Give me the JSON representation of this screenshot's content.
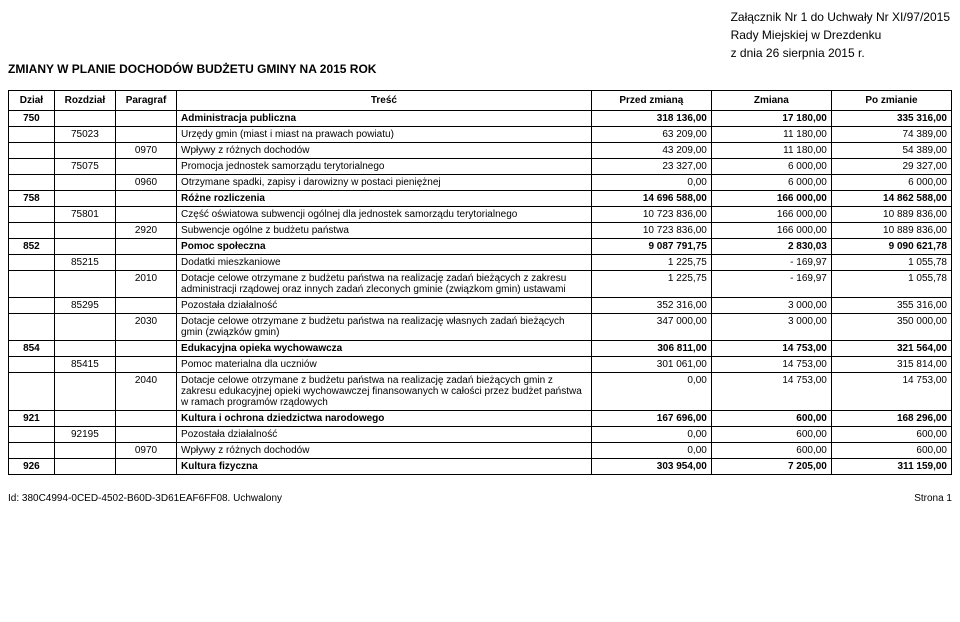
{
  "header": {
    "attachment": "Załącznik Nr 1 do Uchwały Nr XI/97/2015",
    "council": "Rady Miejskiej w Drezdenku",
    "date": "z dnia 26 sierpnia 2015 r."
  },
  "title": "ZMIANY W PLANIE DOCHODÓW BUDŻETU GMINY NA 2015 ROK",
  "columns": {
    "dzial": "Dział",
    "rozdzial": "Rozdział",
    "paragraf": "Paragraf",
    "tresc": "Treść",
    "przed": "Przed zmianą",
    "zmiana": "Zmiana",
    "po": "Po zmianie"
  },
  "rows": [
    {
      "dzial": "750",
      "rozdzial": "",
      "paragraf": "",
      "tresc": "Administracja publiczna",
      "przed": "318 136,00",
      "zmiana": "17 180,00",
      "po": "335 316,00",
      "bold": true
    },
    {
      "dzial": "",
      "rozdzial": "75023",
      "paragraf": "",
      "tresc": "Urzędy gmin (miast i miast na prawach powiatu)",
      "przed": "63 209,00",
      "zmiana": "11 180,00",
      "po": "74 389,00",
      "bold": false
    },
    {
      "dzial": "",
      "rozdzial": "",
      "paragraf": "0970",
      "tresc": "Wpływy z różnych dochodów",
      "przed": "43 209,00",
      "zmiana": "11 180,00",
      "po": "54 389,00",
      "bold": false
    },
    {
      "dzial": "",
      "rozdzial": "75075",
      "paragraf": "",
      "tresc": "Promocja jednostek samorządu terytorialnego",
      "przed": "23 327,00",
      "zmiana": "6 000,00",
      "po": "29 327,00",
      "bold": false
    },
    {
      "dzial": "",
      "rozdzial": "",
      "paragraf": "0960",
      "tresc": "Otrzymane spadki, zapisy i darowizny w postaci pieniężnej",
      "przed": "0,00",
      "zmiana": "6 000,00",
      "po": "6 000,00",
      "bold": false
    },
    {
      "dzial": "758",
      "rozdzial": "",
      "paragraf": "",
      "tresc": "Różne rozliczenia",
      "przed": "14 696 588,00",
      "zmiana": "166 000,00",
      "po": "14 862 588,00",
      "bold": true
    },
    {
      "dzial": "",
      "rozdzial": "75801",
      "paragraf": "",
      "tresc": "Część oświatowa subwencji ogólnej dla jednostek samorządu terytorialnego",
      "przed": "10 723 836,00",
      "zmiana": "166 000,00",
      "po": "10 889 836,00",
      "bold": false
    },
    {
      "dzial": "",
      "rozdzial": "",
      "paragraf": "2920",
      "tresc": "Subwencje ogólne z budżetu państwa",
      "przed": "10 723 836,00",
      "zmiana": "166 000,00",
      "po": "10 889 836,00",
      "bold": false
    },
    {
      "dzial": "852",
      "rozdzial": "",
      "paragraf": "",
      "tresc": "Pomoc społeczna",
      "przed": "9 087 791,75",
      "zmiana": "2 830,03",
      "po": "9 090 621,78",
      "bold": true
    },
    {
      "dzial": "",
      "rozdzial": "85215",
      "paragraf": "",
      "tresc": "Dodatki mieszkaniowe",
      "przed": "1 225,75",
      "zmiana": "- 169,97",
      "po": "1 055,78",
      "bold": false
    },
    {
      "dzial": "",
      "rozdzial": "",
      "paragraf": "2010",
      "tresc": "Dotacje celowe otrzymane z budżetu państwa na realizację zadań bieżących z zakresu administracji rządowej oraz innych zadań zleconych gminie (związkom gmin) ustawami",
      "przed": "1 225,75",
      "zmiana": "- 169,97",
      "po": "1 055,78",
      "bold": false
    },
    {
      "dzial": "",
      "rozdzial": "85295",
      "paragraf": "",
      "tresc": "Pozostała działalność",
      "przed": "352 316,00",
      "zmiana": "3 000,00",
      "po": "355 316,00",
      "bold": false
    },
    {
      "dzial": "",
      "rozdzial": "",
      "paragraf": "2030",
      "tresc": "Dotacje celowe otrzymane z budżetu państwa na realizację własnych zadań bieżących gmin (związków gmin)",
      "przed": "347 000,00",
      "zmiana": "3 000,00",
      "po": "350 000,00",
      "bold": false
    },
    {
      "dzial": "854",
      "rozdzial": "",
      "paragraf": "",
      "tresc": "Edukacyjna opieka wychowawcza",
      "przed": "306 811,00",
      "zmiana": "14 753,00",
      "po": "321 564,00",
      "bold": true
    },
    {
      "dzial": "",
      "rozdzial": "85415",
      "paragraf": "",
      "tresc": "Pomoc materialna dla uczniów",
      "przed": "301 061,00",
      "zmiana": "14 753,00",
      "po": "315 814,00",
      "bold": false
    },
    {
      "dzial": "",
      "rozdzial": "",
      "paragraf": "2040",
      "tresc": "Dotacje celowe otrzymane z budżetu państwa na realizację zadań bieżących gmin z zakresu edukacyjnej opieki wychowawczej finansowanych w całości przez budżet państwa w ramach programów rządowych",
      "przed": "0,00",
      "zmiana": "14 753,00",
      "po": "14 753,00",
      "bold": false
    },
    {
      "dzial": "921",
      "rozdzial": "",
      "paragraf": "",
      "tresc": "Kultura i ochrona dziedzictwa narodowego",
      "przed": "167 696,00",
      "zmiana": "600,00",
      "po": "168 296,00",
      "bold": true
    },
    {
      "dzial": "",
      "rozdzial": "92195",
      "paragraf": "",
      "tresc": "Pozostała działalność",
      "przed": "0,00",
      "zmiana": "600,00",
      "po": "600,00",
      "bold": false
    },
    {
      "dzial": "",
      "rozdzial": "",
      "paragraf": "0970",
      "tresc": "Wpływy z różnych dochodów",
      "przed": "0,00",
      "zmiana": "600,00",
      "po": "600,00",
      "bold": false
    },
    {
      "dzial": "926",
      "rozdzial": "",
      "paragraf": "",
      "tresc": "Kultura fizyczna",
      "przed": "303 954,00",
      "zmiana": "7 205,00",
      "po": "311 159,00",
      "bold": true
    }
  ],
  "footer": {
    "left": "Id: 380C4994-0CED-4502-B60D-3D61EAF6FF08. Uchwalony",
    "right": "Strona 1"
  }
}
